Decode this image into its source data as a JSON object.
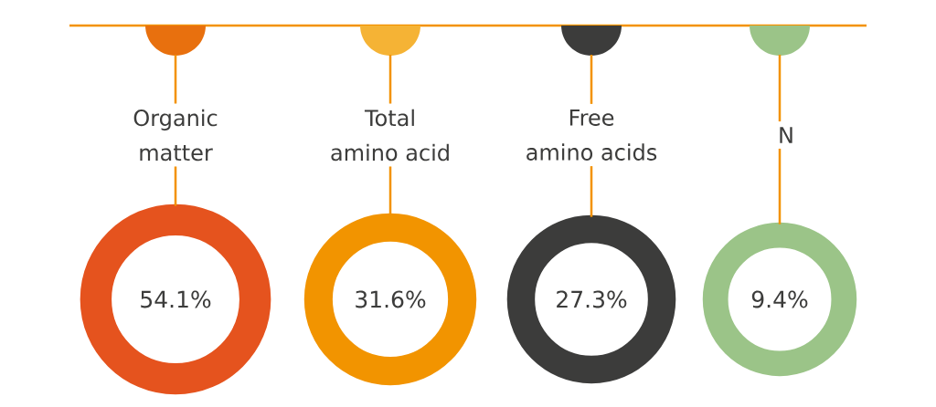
{
  "chart_data": {
    "type": "other",
    "categories": [
      "Organic matter",
      "Total amino acid",
      "Free amino acids",
      "N"
    ],
    "values": [
      54.1,
      31.6,
      27.3,
      9.4
    ],
    "value_labels": [
      "54.1%",
      "31.6%",
      "27.3%",
      "9.4%"
    ],
    "colors": [
      "#e5531e",
      "#f29400",
      "#3c3c3b",
      "#9bc488"
    ]
  }
}
